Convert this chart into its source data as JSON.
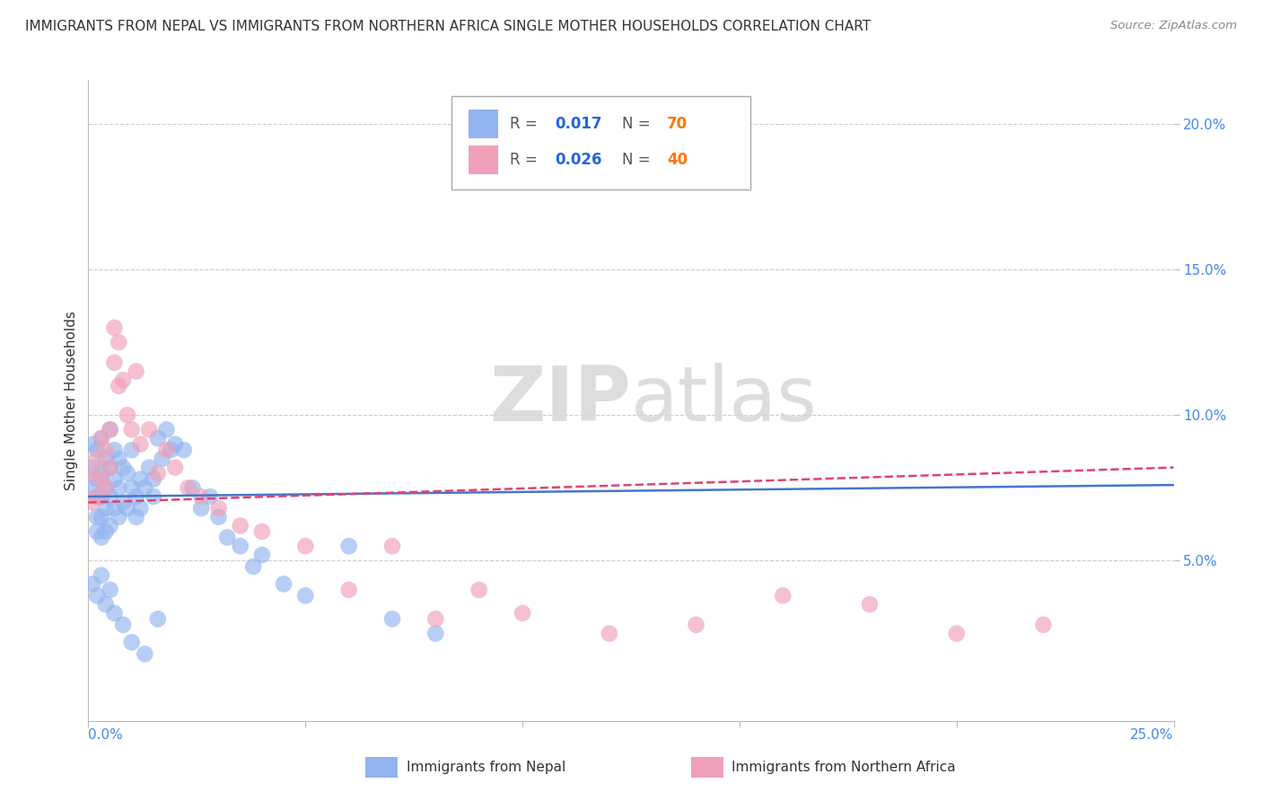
{
  "title": "IMMIGRANTS FROM NEPAL VS IMMIGRANTS FROM NORTHERN AFRICA SINGLE MOTHER HOUSEHOLDS CORRELATION CHART",
  "source": "Source: ZipAtlas.com",
  "ylabel": "Single Mother Households",
  "xlim": [
    0.0,
    0.25
  ],
  "ylim": [
    -0.005,
    0.215
  ],
  "yticks": [
    0.05,
    0.1,
    0.15,
    0.2
  ],
  "ytick_labels": [
    "5.0%",
    "10.0%",
    "15.0%",
    "20.0%"
  ],
  "color_nepal": "#92b4f0",
  "color_nafr": "#f0a0b8",
  "color_nepal_line": "#4477cc",
  "color_nafr_line": "#dd4477",
  "watermark_zip": "ZIP",
  "watermark_atlas": "atlas",
  "background_color": "#ffffff",
  "nepal_x": [
    0.001,
    0.001,
    0.001,
    0.002,
    0.002,
    0.002,
    0.002,
    0.002,
    0.003,
    0.003,
    0.003,
    0.003,
    0.003,
    0.004,
    0.004,
    0.004,
    0.004,
    0.005,
    0.005,
    0.005,
    0.005,
    0.006,
    0.006,
    0.006,
    0.007,
    0.007,
    0.007,
    0.008,
    0.008,
    0.009,
    0.009,
    0.01,
    0.01,
    0.011,
    0.011,
    0.012,
    0.012,
    0.013,
    0.014,
    0.015,
    0.015,
    0.016,
    0.017,
    0.018,
    0.019,
    0.02,
    0.022,
    0.024,
    0.026,
    0.028,
    0.03,
    0.032,
    0.035,
    0.038,
    0.04,
    0.045,
    0.05,
    0.06,
    0.07,
    0.08,
    0.001,
    0.002,
    0.003,
    0.004,
    0.005,
    0.006,
    0.008,
    0.01,
    0.013,
    0.016
  ],
  "nepal_y": [
    0.09,
    0.082,
    0.075,
    0.088,
    0.078,
    0.072,
    0.065,
    0.06,
    0.092,
    0.08,
    0.072,
    0.065,
    0.058,
    0.085,
    0.075,
    0.068,
    0.06,
    0.095,
    0.082,
    0.072,
    0.062,
    0.088,
    0.078,
    0.068,
    0.085,
    0.075,
    0.065,
    0.082,
    0.07,
    0.08,
    0.068,
    0.088,
    0.075,
    0.072,
    0.065,
    0.078,
    0.068,
    0.075,
    0.082,
    0.078,
    0.072,
    0.092,
    0.085,
    0.095,
    0.088,
    0.09,
    0.088,
    0.075,
    0.068,
    0.072,
    0.065,
    0.058,
    0.055,
    0.048,
    0.052,
    0.042,
    0.038,
    0.055,
    0.03,
    0.025,
    0.042,
    0.038,
    0.045,
    0.035,
    0.04,
    0.032,
    0.028,
    0.022,
    0.018,
    0.03
  ],
  "nafr_x": [
    0.001,
    0.001,
    0.002,
    0.002,
    0.003,
    0.003,
    0.004,
    0.004,
    0.005,
    0.005,
    0.006,
    0.006,
    0.007,
    0.007,
    0.008,
    0.009,
    0.01,
    0.011,
    0.012,
    0.014,
    0.016,
    0.018,
    0.02,
    0.023,
    0.026,
    0.03,
    0.035,
    0.04,
    0.05,
    0.06,
    0.07,
    0.08,
    0.09,
    0.1,
    0.12,
    0.14,
    0.16,
    0.18,
    0.2,
    0.22
  ],
  "nafr_y": [
    0.08,
    0.07,
    0.085,
    0.072,
    0.092,
    0.078,
    0.088,
    0.075,
    0.095,
    0.082,
    0.13,
    0.118,
    0.125,
    0.11,
    0.112,
    0.1,
    0.095,
    0.115,
    0.09,
    0.095,
    0.08,
    0.088,
    0.082,
    0.075,
    0.072,
    0.068,
    0.062,
    0.06,
    0.055,
    0.04,
    0.055,
    0.03,
    0.04,
    0.032,
    0.025,
    0.028,
    0.038,
    0.035,
    0.025,
    0.028
  ]
}
